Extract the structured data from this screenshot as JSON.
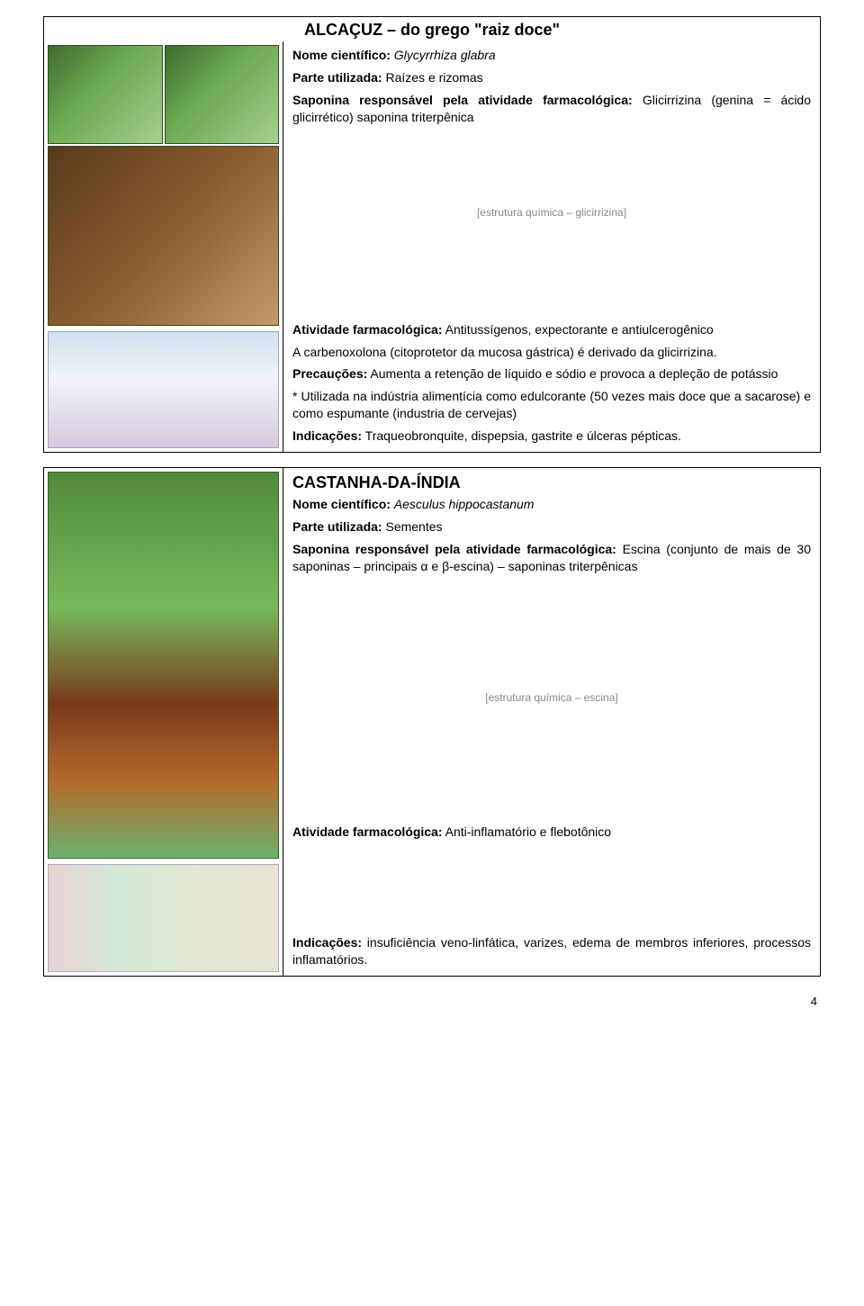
{
  "page": {
    "number": "4"
  },
  "cards": {
    "alcacuz": {
      "title": "ALCAÇUZ – do grego \"raiz doce\"",
      "lines": {
        "nome_label": "Nome científico:",
        "nome_value": "Glycyrrhiza glabra",
        "parte_label": "Parte utilizada:",
        "parte_value": "Raízes e rizomas",
        "sap_label": "Saponina responsável pela atividade farmacológica:",
        "sap_value": "Glicirrizina (genina = ácido glicirrético) saponina triterpênica",
        "ativ_label": "Atividade farmacológica:",
        "ativ_value": "Antitussígenos, expectorante e antiulcerogênico",
        "carb": "A carbenoxolona (citoprotetor da mucosa gástrica) é derivado da glicirrizina.",
        "prec_label": "Precauções:",
        "prec_value": "Aumenta a retenção de líquido e sódio e provoca a depleção de potássio",
        "uso": "* Utilizada na indústria alimentícia como edulcorante (50 vezes mais doce que a sacarose) e como espumante (industria de cervejas)",
        "ind_label": "Indicações:",
        "ind_value": "Traqueobronquite, dispepsia, gastrite e úlceras pépticas."
      },
      "chem_placeholder": "[estrutura química – glicirrizina]"
    },
    "castanha": {
      "title": "CASTANHA-DA-ÍNDIA",
      "lines": {
        "nome_label": "Nome científico:",
        "nome_value": "Aesculus hippocastanum",
        "parte_label": "Parte utilizada:",
        "parte_value": "Sementes",
        "sap_label": "Saponina responsável pela atividade farmacológica:",
        "sap_value": "Escina (conjunto de mais de 30 saponinas – principais α e β-escina) – saponinas triterpênicas",
        "ativ_label": "Atividade farmacológica:",
        "ativ_value": "Anti-inflamatório e flebotônico",
        "ind_label": "Indicações:",
        "ind_value": "insuficiência veno-linfática, varizes, edema de membros inferiores, processos inflamatórios."
      },
      "chem_placeholder": "[estrutura química – escina]"
    }
  },
  "colors": {
    "border": "#000000",
    "background": "#ffffff",
    "text": "#000000"
  },
  "typography": {
    "body_pt": 14,
    "title_pt": 18,
    "font_family": "Arial"
  }
}
